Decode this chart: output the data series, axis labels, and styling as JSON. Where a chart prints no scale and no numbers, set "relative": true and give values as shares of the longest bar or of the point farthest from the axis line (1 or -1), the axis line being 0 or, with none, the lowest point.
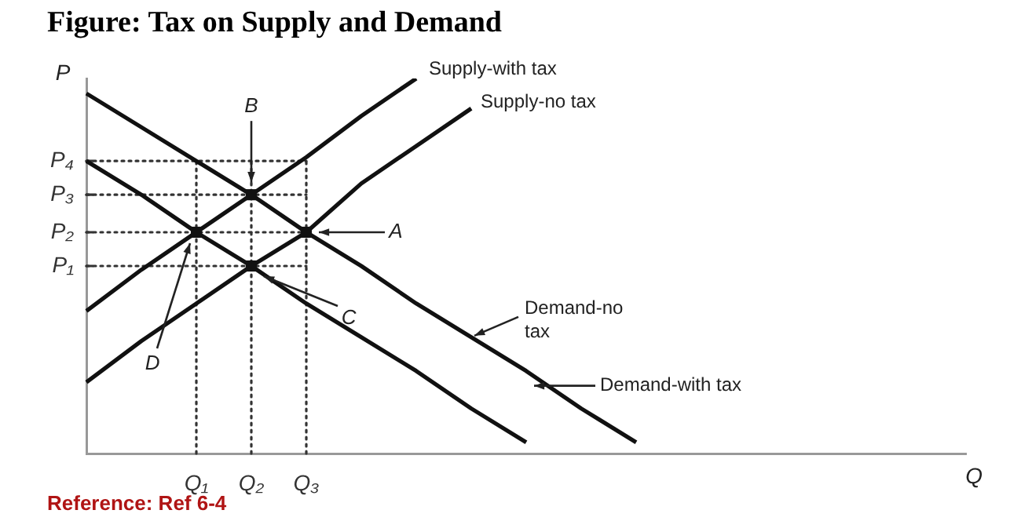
{
  "chart_data": {
    "type": "line",
    "title": "Figure: Tax on Supply and Demand",
    "xlabel": "Q",
    "ylabel": "P",
    "relative": true,
    "legend": false,
    "grid": "x",
    "marker": "none",
    "categories": [
      null,
      null,
      "Q₁",
      "Q₂",
      "Q₃",
      null,
      null,
      null,
      null,
      null,
      null,
      null,
      null,
      null,
      null,
      null,
      null
    ],
    "series": [
      {
        "name": "Supply-with tax",
        "color": "#111111",
        "values": [
          0.38,
          0.49,
          0.59,
          0.69,
          0.79,
          0.9,
          1,
          null,
          null,
          null,
          null,
          null,
          null,
          null,
          null,
          null,
          null
        ]
      },
      {
        "name": "Supply-no tax",
        "color": "#111111",
        "values": [
          0.19,
          0.3,
          0.4,
          0.5,
          0.59,
          0.72,
          0.82,
          0.92,
          null,
          null,
          null,
          null,
          null,
          null,
          null,
          null,
          null
        ]
      },
      {
        "name": "Demand-no tax",
        "color": "#111111",
        "values": [
          0.96,
          0.87,
          0.78,
          0.69,
          0.59,
          0.5,
          0.4,
          0.31,
          0.22,
          0.12,
          0.03,
          null,
          null,
          null,
          null,
          null,
          null
        ]
      },
      {
        "name": "Demand-with tax",
        "color": "#111111",
        "values": [
          0.78,
          0.69,
          0.59,
          0.5,
          0.4,
          0.31,
          0.22,
          0.12,
          0.03,
          null,
          null,
          null,
          null,
          null,
          null,
          null,
          null
        ]
      },
      {
        "type": "scatter",
        "marker": "square",
        "color": "#111111",
        "x": [
          "Q₁",
          "Q₂",
          "Q₂",
          "Q₃"
        ],
        "values": [
          0.59,
          0.69,
          0.5,
          0.59
        ]
      }
    ],
    "ref_lines": [
      {
        "axis": "y",
        "value": 0.78,
        "label": "P₄",
        "line_style": "dotted"
      },
      {
        "axis": "y",
        "value": 0.69,
        "label": "P₃",
        "line_style": "dotted"
      },
      {
        "axis": "y",
        "value": 0.59,
        "label": "P₂",
        "line_style": "dotted"
      },
      {
        "axis": "y",
        "value": 0.5,
        "label": "P₁",
        "line_style": "dotted"
      }
    ],
    "annotations": [
      {
        "text": "A",
        "x": "Q₃",
        "y": 0.59
      },
      {
        "text": "B",
        "x": "Q₂",
        "y": 0.69
      },
      "C",
      "D",
      "Reference: Ref 6-4"
    ]
  }
}
